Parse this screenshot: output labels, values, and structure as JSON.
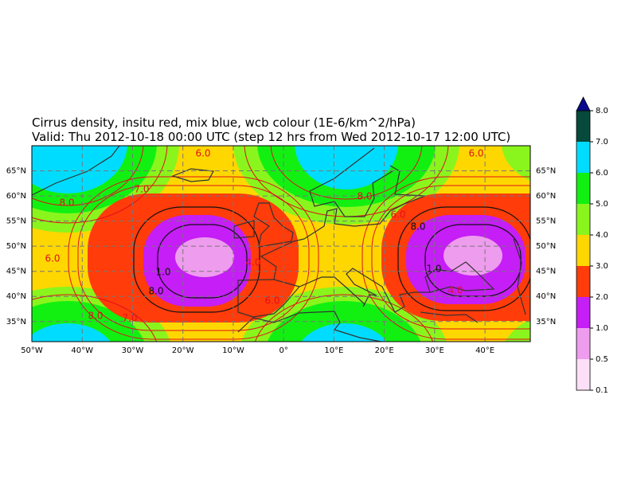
{
  "map": {
    "title": "Cirrus density, insitu red, mix blue, wcb colour (1E-6/km^2/hPa)",
    "subtitle": "Valid: Thu 2012-10-18 00:00 UTC (step 12 hrs from Wed 2012-10-17 12:00 UTC)",
    "lonlim": [
      -50,
      49
    ],
    "latlim": [
      31,
      70
    ],
    "lonticks": [
      {
        "value": -50,
        "label": "50°W"
      },
      {
        "value": -40,
        "label": "40°W"
      },
      {
        "value": -30,
        "label": "30°W"
      },
      {
        "value": -20,
        "label": "20°W"
      },
      {
        "value": -10,
        "label": "10°W"
      },
      {
        "value": 0,
        "label": "0°"
      },
      {
        "value": 10,
        "label": "10°E"
      },
      {
        "value": 20,
        "label": "20°E"
      },
      {
        "value": 30,
        "label": "30°E"
      },
      {
        "value": 40,
        "label": "40°E"
      }
    ],
    "latticks": [
      {
        "value": 35,
        "label": "35°N"
      },
      {
        "value": 40,
        "label": "40°N"
      },
      {
        "value": 45,
        "label": "45°N"
      },
      {
        "value": 50,
        "label": "50°N"
      },
      {
        "value": 55,
        "label": "55°N"
      },
      {
        "value": 60,
        "label": "60°N"
      },
      {
        "value": 65,
        "label": "65°N"
      }
    ],
    "grid": true,
    "colorbar": {
      "levels": [
        0.1,
        0.5,
        {
          "value": 1,
          "label": "1.0"
        },
        {
          "value": 2,
          "label": "2.0"
        },
        {
          "value": 3,
          "label": "3.0"
        },
        {
          "value": 4,
          "label": "4.0"
        },
        {
          "value": 5,
          "label": "5.0"
        },
        {
          "value": 6,
          "label": "6.0"
        },
        {
          "value": 7,
          "label": "7.0"
        },
        {
          "value": 8,
          "label": "8.0"
        }
      ],
      "colors": [
        "#fde0f8",
        "#ee9cee",
        "#c51ef6",
        "#ff3c0a",
        "#ffd700",
        "#8af51c",
        "#12f012",
        "#00dcff",
        "#064a3c"
      ],
      "extend_color": "#0a0a8c"
    },
    "contour_labels": [
      "6.0",
      "7.0",
      "8.0",
      "6.0",
      "8.0",
      "7.0",
      "1.0",
      "8.0",
      "6.0",
      "4.0",
      "8.0",
      "6.0",
      "8.0",
      "6.0",
      "1.0",
      "4.0"
    ]
  }
}
